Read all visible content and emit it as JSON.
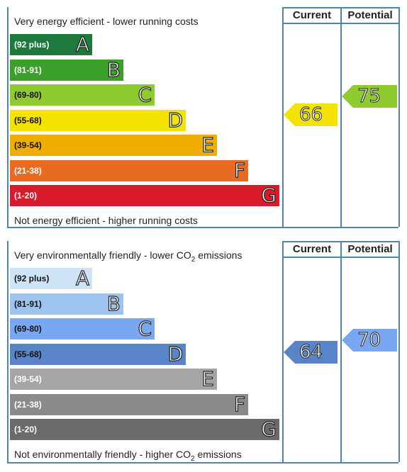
{
  "energy": {
    "top_caption": "Very energy efficient - lower running costs",
    "bottom_caption": "Not energy efficient - higher running costs",
    "col_current": "Current",
    "col_potential": "Potential",
    "bands": [
      {
        "range": "(92 plus)",
        "letter": "A",
        "color": "#1e7a3c"
      },
      {
        "range": "(81-91)",
        "letter": "B",
        "color": "#3ba02a"
      },
      {
        "range": "(69-80)",
        "letter": "C",
        "color": "#8ecb2f"
      },
      {
        "range": "(55-68)",
        "letter": "D",
        "color": "#f4e200"
      },
      {
        "range": "(39-54)",
        "letter": "E",
        "color": "#f0ae00"
      },
      {
        "range": "(21-38)",
        "letter": "F",
        "color": "#e86a23"
      },
      {
        "range": "(1-20)",
        "letter": "G",
        "color": "#d81a2a"
      }
    ],
    "current": {
      "value": "66",
      "color": "#f4e200"
    },
    "potential": {
      "value": "75",
      "color": "#8ecb2f"
    }
  },
  "environmental": {
    "top_caption_pre": "Very environmentally friendly - lower CO",
    "top_caption_sub": "2",
    "top_caption_post": " emissions",
    "bottom_caption_pre": "Not environmentally friendly - higher CO",
    "bottom_caption_sub": "2",
    "bottom_caption_post": " emissions",
    "col_current": "Current",
    "col_potential": "Potential",
    "bands": [
      {
        "range": "(92 plus)",
        "letter": "A",
        "color": "#cfe3f7"
      },
      {
        "range": "(81-91)",
        "letter": "B",
        "color": "#9dc3ef"
      },
      {
        "range": "(69-80)",
        "letter": "C",
        "color": "#7aa7f2"
      },
      {
        "range": "(55-68)",
        "letter": "D",
        "color": "#5a84c8"
      },
      {
        "range": "(39-54)",
        "letter": "E",
        "color": "#a5a5a5"
      },
      {
        "range": "(21-38)",
        "letter": "F",
        "color": "#8a8a8a"
      },
      {
        "range": "(1-20)",
        "letter": "G",
        "color": "#6b6b6b"
      }
    ],
    "current": {
      "value": "64",
      "color": "#5a84c8"
    },
    "potential": {
      "value": "70",
      "color": "#7aa7f2"
    }
  }
}
